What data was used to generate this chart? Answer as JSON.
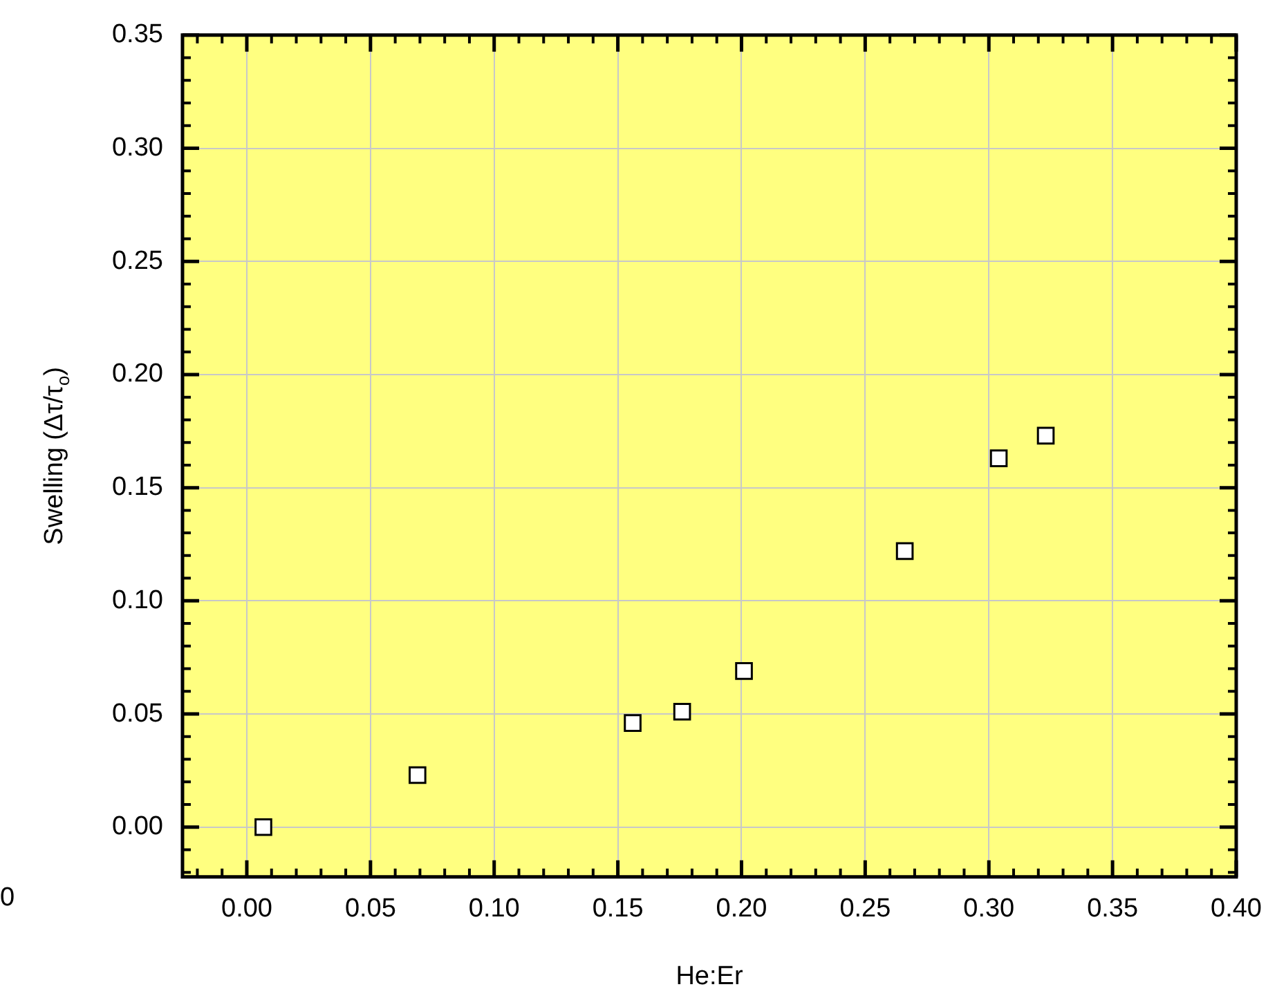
{
  "chart_data": {
    "type": "scatter",
    "xlabel": "He:Er",
    "ylabel": "Swelling (Δτ/τ$_{o}$)",
    "annotations": [
      "0"
    ],
    "x": [
      0.0067,
      0.069,
      0.156,
      0.176,
      0.201,
      0.266,
      0.304,
      0.323
    ],
    "series": [
      {
        "color": "#ffffff",
        "values": [
          0.0,
          0.023,
          0.046,
          0.051,
          0.069,
          0.122,
          0.163,
          0.173
        ]
      }
    ],
    "xlim": [
      -0.026,
      0.4
    ],
    "xticks": [
      {
        "value": 0,
        "label": "0.00"
      },
      0.05,
      {
        "value": 0.1,
        "label": "0.10"
      },
      0.15,
      {
        "value": 0.2,
        "label": "0.20"
      },
      0.25,
      {
        "value": 0.3,
        "label": "0.30"
      },
      0.35,
      {
        "value": 0.4,
        "label": "0.40"
      }
    ],
    "ylim": [
      -0.022,
      0.35
    ],
    "yticks": [
      {
        "value": 0,
        "label": "0.00"
      },
      0.05,
      {
        "value": 0.1,
        "label": "0.10"
      },
      0.15,
      {
        "value": 0.2,
        "label": "0.20"
      },
      0.25,
      {
        "value": 0.3,
        "label": "0.30"
      },
      0.35
    ],
    "grid": true,
    "legend": false,
    "marker": "square"
  }
}
